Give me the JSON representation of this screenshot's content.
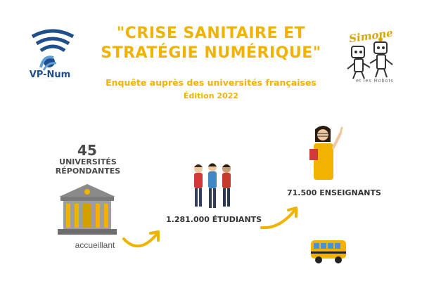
{
  "header": {
    "title_line1": "\"CRISE SANITAIRE ET",
    "title_line2": "STRATÉGIE NUMÉRIQUE\"",
    "subtitle": "Enquête auprès des universités françaises",
    "edition": "Édition 2022"
  },
  "logos": {
    "vpnum_label": "VP-Num",
    "simone_label": "Simone",
    "simone_sub": "et les Robots"
  },
  "stats": {
    "universities_count": "45",
    "universities_label_line1": "UNIVERSITÉS",
    "universities_label_line2": "RÉPONDANTES",
    "universities_caption": "accueillant",
    "students": "1.281.000 ÉTUDIANTS",
    "teachers": "71.500 ENSEIGNANTS"
  },
  "colors": {
    "accent": "#f1b300",
    "text_dark": "#4a4a4a",
    "logo_blue": "#1f4e8c"
  }
}
